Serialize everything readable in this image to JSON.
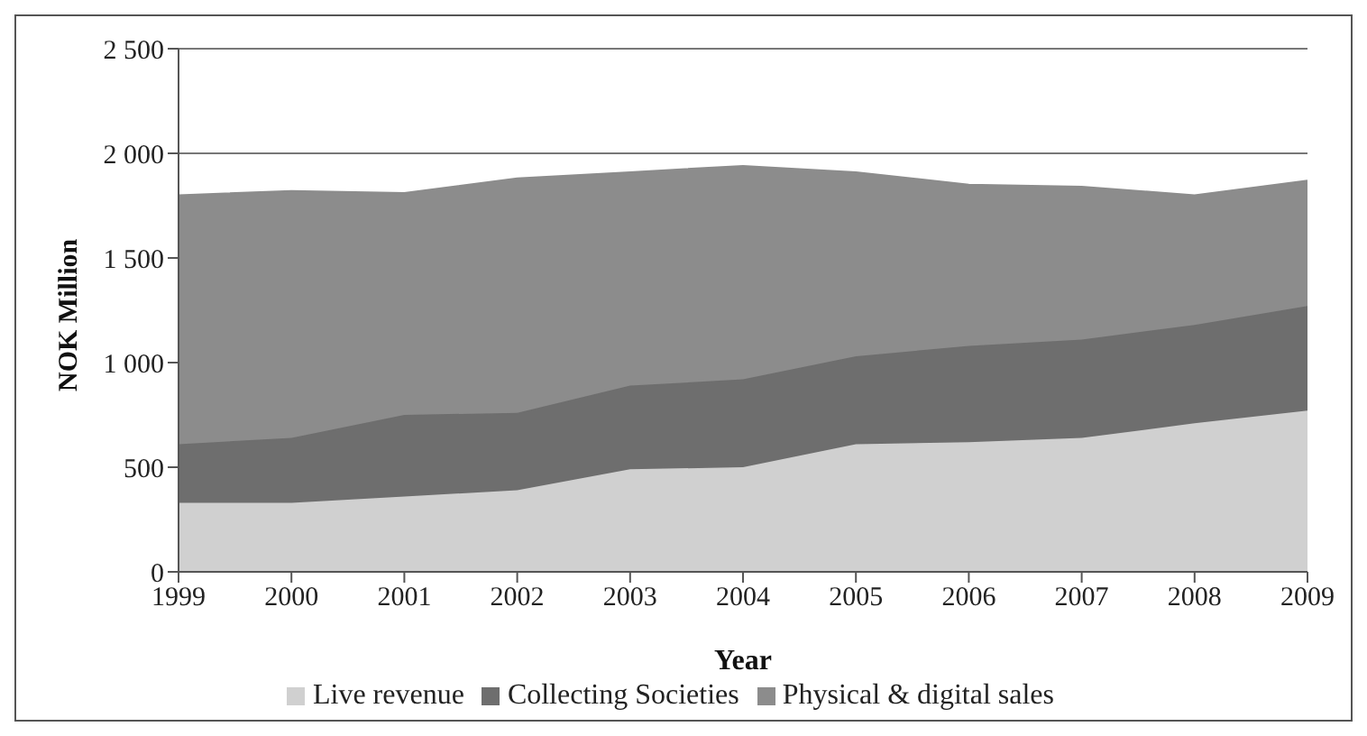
{
  "chart_data": {
    "type": "area",
    "stacked": true,
    "xlabel": "Year",
    "ylabel": "NOK Million",
    "categories": [
      "1999",
      "2000",
      "2001",
      "2002",
      "2003",
      "2004",
      "2005",
      "2006",
      "2007",
      "2008",
      "2009"
    ],
    "series": [
      {
        "name": "Live revenue",
        "color": "#d0d0d0",
        "values": [
          330,
          330,
          360,
          390,
          490,
          500,
          610,
          620,
          640,
          710,
          770
        ]
      },
      {
        "name": "Collecting Societies",
        "color": "#6e6e6e",
        "values": [
          280,
          310,
          390,
          370,
          400,
          420,
          420,
          460,
          470,
          470,
          500
        ]
      },
      {
        "name": "Physical & digital sales",
        "color": "#8c8c8c",
        "values": [
          1190,
          1180,
          1060,
          1120,
          1020,
          1020,
          880,
          770,
          730,
          620,
          600
        ]
      }
    ],
    "ylim": [
      0,
      2500
    ],
    "yticks": [
      0,
      500,
      {
        "value": 1000,
        "label": "1 000"
      },
      {
        "value": 1500,
        "label": "1 500"
      },
      {
        "value": 2000,
        "label": "2 000"
      },
      {
        "value": 2500,
        "label": "2 500"
      }
    ],
    "grid": "y",
    "legend": "bottom"
  }
}
